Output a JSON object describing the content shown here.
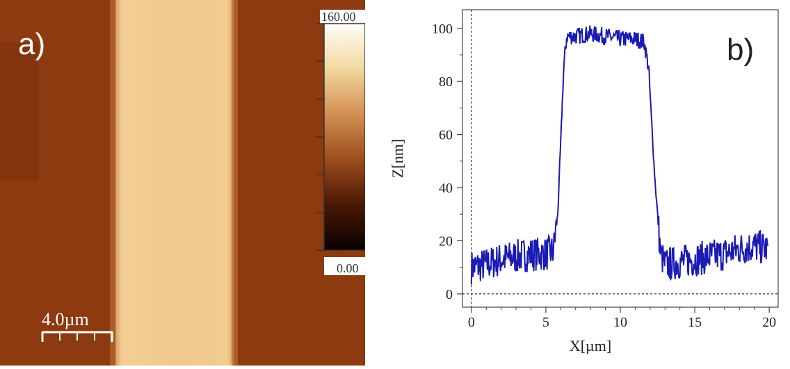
{
  "panel_a": {
    "label": "a)",
    "scale_bar_label": "4.0µm",
    "colorbar_max": "160.00",
    "colorbar_min": "0.00",
    "colors": {
      "substrate": "#8e3a10",
      "stripe": "#efc98e",
      "cbar_stops": [
        "#fffef8",
        "#f2d79f",
        "#d28f52",
        "#9c4d1c",
        "#4a1704",
        "#080100"
      ]
    }
  },
  "chart_data": {
    "type": "line",
    "panel_label": "b)",
    "xlabel": "X[µm]",
    "ylabel": "Z[nm]",
    "xlim": [
      -0.6,
      20.6
    ],
    "ylim": [
      -5,
      107
    ],
    "xticks": [
      0,
      5,
      10,
      15,
      20
    ],
    "yticks": [
      0,
      20,
      40,
      60,
      80,
      100
    ],
    "grid": false,
    "line_color": "#1a1ab5",
    "reference_lines": [
      {
        "axis": "x",
        "value": 0,
        "style": "dashed"
      },
      {
        "axis": "y",
        "value": 0,
        "style": "dashed"
      }
    ],
    "series": [
      {
        "x": [
          0,
          1,
          2,
          3,
          4,
          5,
          5.5,
          5.8,
          6.2,
          6.4,
          7,
          8,
          9,
          10,
          11,
          11.6,
          11.9,
          12.3,
          12.7,
          13,
          14,
          15,
          16,
          17,
          18,
          19,
          19.9
        ],
        "y": [
          10,
          11,
          13,
          14,
          15,
          15,
          16,
          30,
          85,
          97,
          97,
          98,
          97,
          96,
          96,
          95,
          85,
          45,
          15,
          11,
          12,
          13,
          14,
          15,
          17,
          18,
          17
        ]
      }
    ]
  }
}
